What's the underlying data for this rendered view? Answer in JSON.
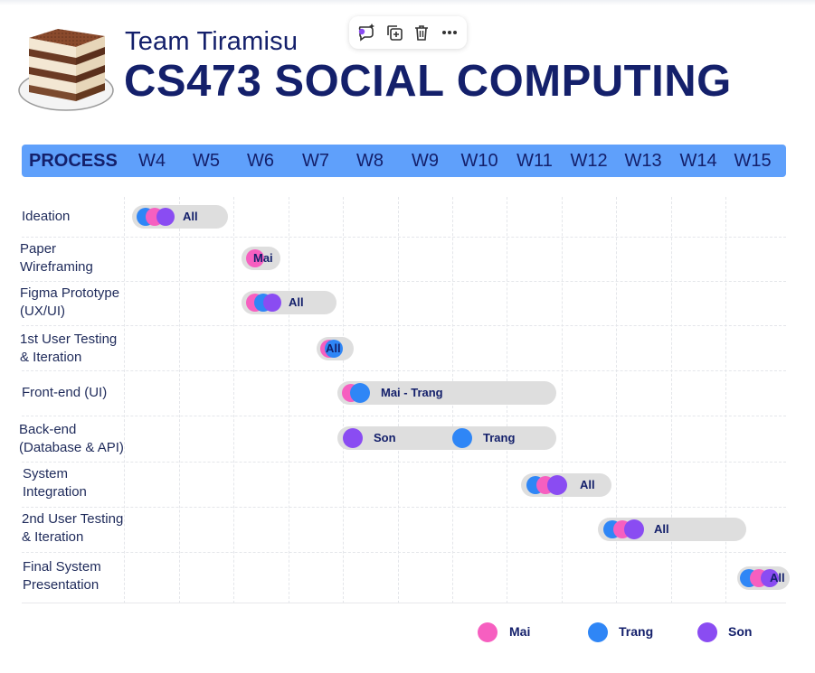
{
  "header": {
    "subtitle": "Team Tiramisu",
    "title": "CS473 SOCIAL COMPUTING"
  },
  "toolbar": {
    "icons": [
      "ai-comment-icon",
      "duplicate-icon",
      "delete-icon",
      "more-icon"
    ]
  },
  "timeline": {
    "process_label": "PROCESS",
    "weeks": [
      "W4",
      "W5",
      "W6",
      "W7",
      "W8",
      "W9",
      "W10",
      "W11",
      "W12",
      "W13",
      "W14",
      "W15"
    ]
  },
  "rows": [
    {
      "task": [
        "Ideation"
      ],
      "assignee": "All"
    },
    {
      "task": [
        "Paper",
        "Wireframing"
      ],
      "assignee": "Mai"
    },
    {
      "task": [
        "Figma Prototype",
        "(UX/UI)"
      ],
      "assignee": "All"
    },
    {
      "task": [
        "1st User Testing",
        "& Iteration"
      ],
      "assignee": "All"
    },
    {
      "task": [
        "Front-end (UI)"
      ],
      "assignee": "Mai - Trang"
    },
    {
      "task": [
        "Back-end",
        "(Database & API)"
      ],
      "assignees": [
        "Son",
        "Trang"
      ]
    },
    {
      "task": [
        "System",
        "Integration"
      ],
      "assignee": "All"
    },
    {
      "task": [
        "2nd User Testing",
        "& Iteration"
      ],
      "assignee": "All"
    },
    {
      "task": [
        "Final System",
        "Presentation"
      ],
      "assignee": "All"
    }
  ],
  "legend": [
    {
      "name": "Mai",
      "color": "#f65fc0"
    },
    {
      "name": "Trang",
      "color": "#2f86f6"
    },
    {
      "name": "Son",
      "color": "#8a4cf2"
    }
  ],
  "colors": {
    "header_bar": "#5fa0fb",
    "text_navy": "#14206b",
    "pill_bg": "#dedede"
  }
}
